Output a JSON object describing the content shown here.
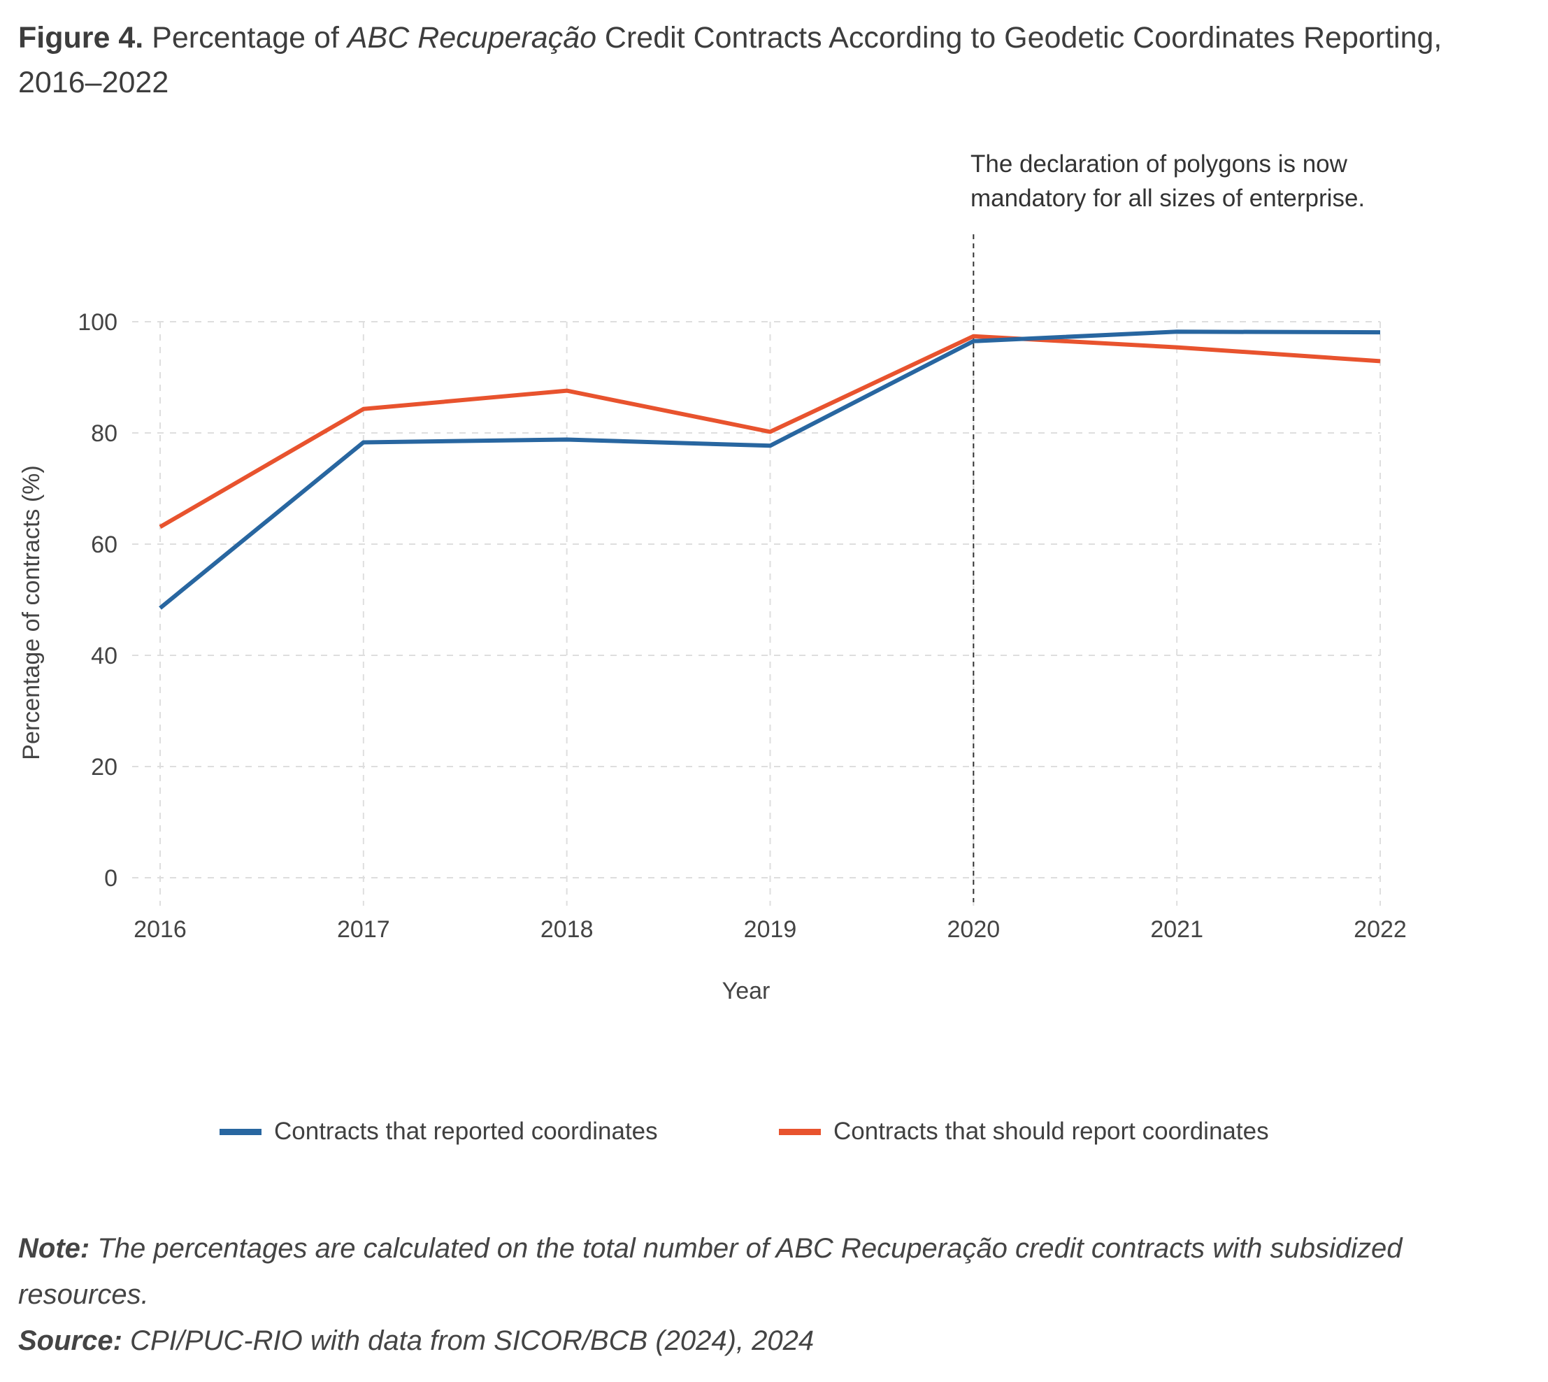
{
  "figure": {
    "label": "Figure 4.",
    "title_pre": " Percentage of ",
    "title_italic": "ABC Recuperação",
    "title_post": " Credit Contracts According to Geodetic Coordinates Reporting, 2016–2022"
  },
  "annotation": {
    "line1": "The declaration of polygons is now",
    "line2": "mandatory for all sizes of enterprise."
  },
  "chart_data": {
    "type": "line",
    "title": "Percentage of ABC Recuperação Credit Contracts According to Geodetic Coordinates Reporting, 2016–2022",
    "xlabel": "Year",
    "ylabel": "Percentage of contracts (%)",
    "x": [
      "2016",
      "2017",
      "2018",
      "2019",
      "2020",
      "2021",
      "2022"
    ],
    "ylim": [
      0,
      100
    ],
    "yticks": [
      "0",
      "20",
      "40",
      "60",
      "80",
      "100"
    ],
    "grid": true,
    "legend_position": "bottom",
    "series": [
      {
        "name": "Contracts that reported coordinates",
        "color": "#2866a0",
        "values": [
          48.5,
          78.3,
          78.8,
          77.7,
          96.5,
          98.2,
          98.1
        ]
      },
      {
        "name": "Contracts that should report coordinates",
        "color": "#e8532e",
        "values": [
          63.1,
          84.3,
          87.6,
          80.2,
          97.4,
          95.4,
          92.9
        ]
      }
    ],
    "reference_line": {
      "x": "2020",
      "style": "dashed",
      "text": "The declaration of polygons is now mandatory for all sizes of enterprise."
    }
  },
  "notes": {
    "note_label": "Note:",
    "note_text": " The percentages are calculated on the total number of ABC Recuperação credit contracts with subsidized resources.",
    "source_label": "Source:",
    "source_text": " CPI/PUC-RIO with data from SICOR/BCB (2024), 2024"
  }
}
